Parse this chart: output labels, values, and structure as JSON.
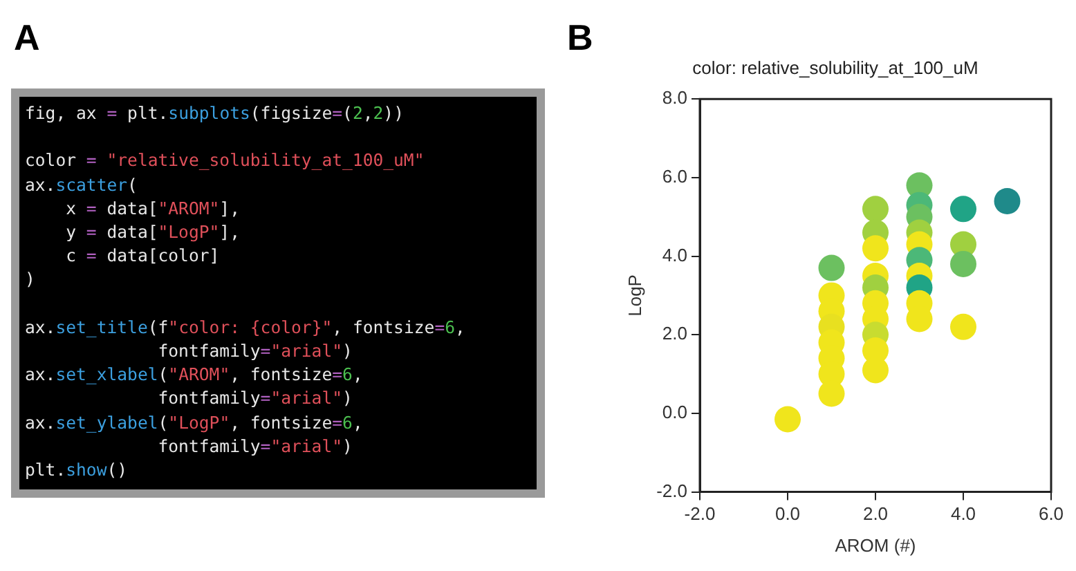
{
  "chart_data": [
    {
      "type": "other",
      "annotations": [
        "A",
        "fig, ax = plt.subplots(figsize=(2,2))",
        "color = \"relative_solubility_at_100_uM\"\nax.scatter(\n    x = data[\"AROM\"],\n    y = data[\"LogP\"],\n    c = data[color]\n)",
        "ax.set_title(f\"color: {color}\", fontsize=6,\n             fontfamily=\"arial\")\nax.set_xlabel(\"AROM\", fontsize=6,\n             fontfamily=\"arial\")\nax.set_ylabel(\"LogP\", fontsize=6,\n             fontfamily=\"arial\")\nplt.show()"
      ]
    },
    {
      "type": "scatter",
      "title": "color: relative_solubility_at_100_uM",
      "xlabel": "AROM (#)",
      "ylabel": "LogP",
      "annotations": [
        "B"
      ],
      "x": [
        0,
        1,
        1,
        1,
        1,
        1,
        1,
        1,
        1,
        2,
        2,
        2,
        2,
        2,
        2,
        2,
        2,
        2,
        2,
        3,
        3,
        3,
        3,
        3,
        3,
        3,
        3,
        3,
        3,
        4,
        4,
        4,
        4,
        5
      ],
      "values": [
        -0.15,
        3.7,
        3.0,
        2.6,
        2.2,
        1.8,
        1.4,
        1.0,
        0.5,
        5.2,
        4.6,
        4.2,
        3.5,
        3.2,
        2.8,
        2.4,
        2.0,
        1.6,
        1.1,
        5.8,
        5.3,
        5.0,
        4.6,
        4.3,
        3.9,
        3.5,
        3.2,
        2.8,
        2.4,
        5.2,
        4.3,
        3.8,
        2.2,
        5.4
      ],
      "colors": [
        "#f0e51c",
        "#6cc060",
        "#f0e51c",
        "#f0e51c",
        "#e8e020",
        "#f0e51c",
        "#f0e51c",
        "#f0e51c",
        "#f0e51c",
        "#a0d040",
        "#a0d040",
        "#f0e51c",
        "#f0e51c",
        "#a0d040",
        "#f0e51c",
        "#f0e51c",
        "#c8dc30",
        "#f0e51c",
        "#f0e51c",
        "#6cc060",
        "#4cb878",
        "#6cc060",
        "#a0d040",
        "#f0e51c",
        "#4cb878",
        "#f0e51c",
        "#20a486",
        "#f0e51c",
        "#f0e51c",
        "#20a486",
        "#a0d040",
        "#6cc060",
        "#f0e51c",
        "#1f8a8a"
      ],
      "xlim": [
        -2,
        6
      ],
      "ylim": [
        -2,
        8
      ],
      "xticks": [
        {
          "value": -2,
          "label": "-2.0"
        },
        {
          "value": 0,
          "label": "0.0"
        },
        {
          "value": 2,
          "label": "2.0"
        },
        {
          "value": 4,
          "label": "4.0"
        },
        {
          "value": 6,
          "label": "6.0"
        }
      ],
      "yticks": [
        {
          "value": -2,
          "label": "-2.0"
        },
        {
          "value": 0,
          "label": "0.0"
        },
        {
          "value": 2,
          "label": "2.0"
        },
        {
          "value": 4,
          "label": "4.0"
        },
        {
          "value": 6,
          "label": "6.0"
        },
        {
          "value": 8,
          "label": "8.0"
        }
      ],
      "grid": false,
      "legend": false,
      "marker": "circle"
    }
  ]
}
